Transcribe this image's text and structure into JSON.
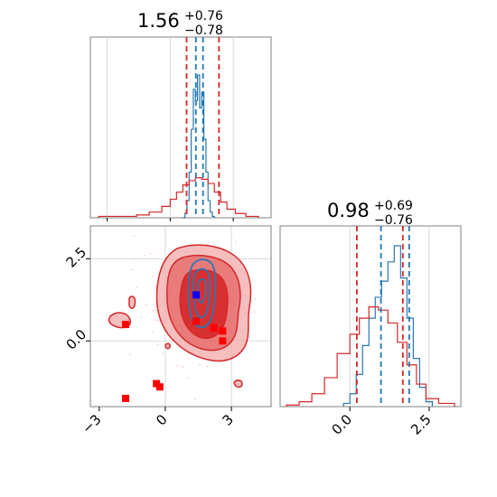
{
  "chart_data": [
    {
      "type": "histogram",
      "panel": "marginal-param-1",
      "title": {
        "value": "1.56",
        "plus": "+0.76",
        "minus": "−0.78"
      },
      "xlim": [
        -3.8,
        4.8
      ],
      "vlines": {
        "red": [
          0.78,
          2.32
        ],
        "blue": [
          1.22,
          1.56
        ]
      },
      "series": [
        {
          "color": "#2878b5",
          "bins": [
            0.6,
            0.7,
            0.8,
            0.9,
            1.0,
            1.1,
            1.2,
            1.3,
            1.4,
            1.5,
            1.6,
            1.7,
            1.8,
            1.9,
            2.0,
            2.1
          ],
          "heights": [
            0.0,
            0.03,
            0.12,
            0.32,
            0.62,
            0.9,
            0.82,
            1.0,
            0.77,
            0.88,
            0.55,
            0.32,
            0.12,
            0.04,
            0.01
          ]
        },
        {
          "color": "#d62728",
          "bins": [
            -3.4,
            -2.8,
            -2.2,
            -1.6,
            -1.0,
            -0.4,
            0.0,
            0.3,
            0.6,
            0.9,
            1.2,
            1.5,
            1.8,
            2.1,
            2.4,
            2.7,
            3.1,
            3.6,
            4.2
          ],
          "heights": [
            0.01,
            0.01,
            0.01,
            0.02,
            0.04,
            0.08,
            0.13,
            0.18,
            0.23,
            0.26,
            0.28,
            0.27,
            0.24,
            0.18,
            0.11,
            0.06,
            0.03,
            0.01
          ]
        }
      ]
    },
    {
      "type": "contour",
      "panel": "joint-param-1-vs-param-2",
      "xlim": [
        -3.4,
        4.8
      ],
      "ylim": [
        -2.0,
        3.5
      ],
      "xticks": [
        -3,
        0,
        3
      ],
      "xticklabels": [
        "−3",
        "0",
        "3"
      ],
      "yticks": [
        0.0,
        2.5
      ],
      "yticklabels": [
        "0.0",
        "2.5"
      ],
      "markers_red": [
        [
          -1.8,
          0.5
        ],
        [
          -1.8,
          -1.75
        ],
        [
          -0.4,
          -1.3
        ],
        [
          -0.25,
          -1.4
        ],
        [
          2.2,
          0.4
        ],
        [
          2.6,
          0.3
        ],
        [
          2.6,
          0.0
        ],
        [
          1.4,
          0.6
        ]
      ],
      "marker_blue": [
        1.4,
        1.4
      ],
      "reference_lines": {
        "x": [
          0.0,
          3.0
        ],
        "y": [
          0.0,
          2.5
        ]
      }
    },
    {
      "type": "histogram",
      "panel": "marginal-param-2",
      "title": {
        "value": "0.98",
        "plus": "+0.69",
        "minus": "−0.76"
      },
      "xlim": [
        -2.2,
        3.5
      ],
      "xticks": [
        0.0,
        2.5
      ],
      "xticklabels": [
        "0.0",
        "2.5"
      ],
      "vlines": {
        "red": [
          0.22,
          1.67
        ],
        "blue": [
          0.98,
          1.87
        ]
      },
      "series": [
        {
          "color": "#2878b5",
          "bins": [
            -0.2,
            0.0,
            0.2,
            0.4,
            0.6,
            0.8,
            1.0,
            1.2,
            1.4,
            1.6,
            1.8,
            2.0,
            2.2,
            2.4,
            2.6
          ],
          "heights": [
            0.02,
            0.08,
            0.2,
            0.38,
            0.55,
            0.68,
            0.78,
            0.9,
            1.0,
            0.8,
            0.55,
            0.3,
            0.12,
            0.03
          ]
        },
        {
          "color": "#d62728",
          "bins": [
            -2.0,
            -1.6,
            -1.2,
            -0.8,
            -0.4,
            0.0,
            0.3,
            0.6,
            0.9,
            1.2,
            1.5,
            1.8,
            2.1,
            2.4,
            2.8,
            3.3
          ],
          "heights": [
            0.01,
            0.03,
            0.08,
            0.18,
            0.33,
            0.45,
            0.55,
            0.62,
            0.6,
            0.52,
            0.4,
            0.26,
            0.14,
            0.05,
            0.02
          ]
        }
      ]
    }
  ]
}
